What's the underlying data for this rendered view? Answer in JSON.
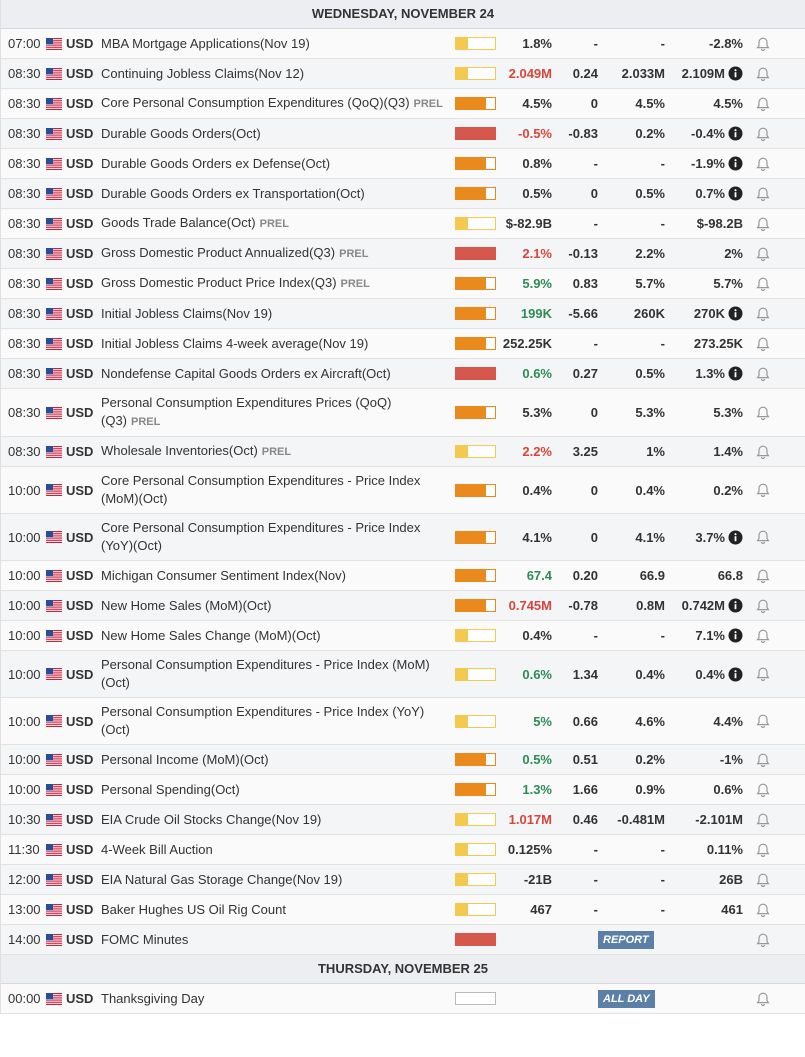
{
  "days": [
    {
      "header": "WEDNESDAY, NOVEMBER 24",
      "events": [
        {
          "time": "07:00",
          "currency": "USD",
          "event": "MBA Mortgage Applications(Nov 19)",
          "impact": "low",
          "actual": "1.8%",
          "deviation": "-",
          "consensus": "-",
          "previous": "-2.8%"
        },
        {
          "time": "08:30",
          "currency": "USD",
          "event": "Continuing Jobless Claims(Nov 12)",
          "impact": "low",
          "actual": "2.049M",
          "actual_tone": "negative",
          "deviation": "0.24",
          "consensus": "2.033M",
          "previous": "2.109M",
          "info": true
        },
        {
          "time": "08:30",
          "currency": "USD",
          "event": "Core Personal Consumption Expenditures (QoQ)(Q3)",
          "tag": "PREL",
          "impact": "medium",
          "actual": "4.5%",
          "deviation": "0",
          "consensus": "4.5%",
          "previous": "4.5%"
        },
        {
          "time": "08:30",
          "currency": "USD",
          "event": "Durable Goods Orders(Oct)",
          "impact": "high",
          "actual": "-0.5%",
          "actual_tone": "negative",
          "deviation": "-0.83",
          "consensus": "0.2%",
          "previous": "-0.4%",
          "info": true
        },
        {
          "time": "08:30",
          "currency": "USD",
          "event": "Durable Goods Orders ex Defense(Oct)",
          "impact": "medium",
          "actual": "0.8%",
          "deviation": "-",
          "consensus": "-",
          "previous": "-1.9%",
          "info": true
        },
        {
          "time": "08:30",
          "currency": "USD",
          "event": "Durable Goods Orders ex Transportation(Oct)",
          "impact": "medium",
          "actual": "0.5%",
          "deviation": "0",
          "consensus": "0.5%",
          "previous": "0.7%",
          "info": true
        },
        {
          "time": "08:30",
          "currency": "USD",
          "event": "Goods Trade Balance(Oct)",
          "tag": "PREL",
          "impact": "low",
          "actual": "$-82.9B",
          "deviation": "-",
          "consensus": "-",
          "previous": "$-98.2B"
        },
        {
          "time": "08:30",
          "currency": "USD",
          "event": "Gross Domestic Product Annualized(Q3)",
          "tag": "PREL",
          "impact": "high",
          "actual": "2.1%",
          "actual_tone": "negative",
          "deviation": "-0.13",
          "consensus": "2.2%",
          "previous": "2%"
        },
        {
          "time": "08:30",
          "currency": "USD",
          "event": "Gross Domestic Product Price Index(Q3)",
          "tag": "PREL",
          "impact": "medium",
          "actual": "5.9%",
          "actual_tone": "positive",
          "deviation": "0.83",
          "consensus": "5.7%",
          "previous": "5.7%"
        },
        {
          "time": "08:30",
          "currency": "USD",
          "event": "Initial Jobless Claims(Nov 19)",
          "impact": "medium",
          "actual": "199K",
          "actual_tone": "positive",
          "deviation": "-5.66",
          "consensus": "260K",
          "previous": "270K",
          "info": true
        },
        {
          "time": "08:30",
          "currency": "USD",
          "event": "Initial Jobless Claims 4-week average(Nov 19)",
          "impact": "medium",
          "actual": "252.25K",
          "deviation": "-",
          "consensus": "-",
          "previous": "273.25K"
        },
        {
          "time": "08:30",
          "currency": "USD",
          "event": "Nondefense Capital Goods Orders ex Aircraft(Oct)",
          "impact": "high",
          "actual": "0.6%",
          "actual_tone": "positive",
          "deviation": "0.27",
          "consensus": "0.5%",
          "previous": "1.3%",
          "info": true
        },
        {
          "time": "08:30",
          "currency": "USD",
          "event": "Personal Consumption Expenditures Prices (QoQ)(Q3)",
          "tag": "PREL",
          "impact": "medium",
          "actual": "5.3%",
          "deviation": "0",
          "consensus": "5.3%",
          "previous": "5.3%"
        },
        {
          "time": "08:30",
          "currency": "USD",
          "event": "Wholesale Inventories(Oct)",
          "tag": "PREL",
          "impact": "low",
          "actual": "2.2%",
          "actual_tone": "negative",
          "deviation": "3.25",
          "consensus": "1%",
          "previous": "1.4%"
        },
        {
          "time": "10:00",
          "currency": "USD",
          "event": "Core Personal Consumption Expenditures - Price Index (MoM)(Oct)",
          "impact": "medium",
          "actual": "0.4%",
          "deviation": "0",
          "consensus": "0.4%",
          "previous": "0.2%"
        },
        {
          "time": "10:00",
          "currency": "USD",
          "event": "Core Personal Consumption Expenditures - Price Index (YoY)(Oct)",
          "impact": "medium",
          "actual": "4.1%",
          "deviation": "0",
          "consensus": "4.1%",
          "previous": "3.7%",
          "info": true
        },
        {
          "time": "10:00",
          "currency": "USD",
          "event": "Michigan Consumer Sentiment Index(Nov)",
          "impact": "medium",
          "actual": "67.4",
          "actual_tone": "positive",
          "deviation": "0.20",
          "consensus": "66.9",
          "previous": "66.8"
        },
        {
          "time": "10:00",
          "currency": "USD",
          "event": "New Home Sales (MoM)(Oct)",
          "impact": "medium",
          "actual": "0.745M",
          "actual_tone": "negative",
          "deviation": "-0.78",
          "consensus": "0.8M",
          "previous": "0.742M",
          "info": true
        },
        {
          "time": "10:00",
          "currency": "USD",
          "event": "New Home Sales Change (MoM)(Oct)",
          "impact": "low",
          "actual": "0.4%",
          "deviation": "-",
          "consensus": "-",
          "previous": "7.1%",
          "info": true
        },
        {
          "time": "10:00",
          "currency": "USD",
          "event": "Personal Consumption Expenditures - Price Index (MoM)(Oct)",
          "impact": "low",
          "actual": "0.6%",
          "actual_tone": "positive",
          "deviation": "1.34",
          "consensus": "0.4%",
          "previous": "0.4%",
          "info": true
        },
        {
          "time": "10:00",
          "currency": "USD",
          "event": "Personal Consumption Expenditures - Price Index (YoY)(Oct)",
          "impact": "low",
          "actual": "5%",
          "actual_tone": "positive",
          "deviation": "0.66",
          "consensus": "4.6%",
          "previous": "4.4%"
        },
        {
          "time": "10:00",
          "currency": "USD",
          "event": "Personal Income (MoM)(Oct)",
          "impact": "medium",
          "actual": "0.5%",
          "actual_tone": "positive",
          "deviation": "0.51",
          "consensus": "0.2%",
          "previous": "-1%"
        },
        {
          "time": "10:00",
          "currency": "USD",
          "event": "Personal Spending(Oct)",
          "impact": "medium",
          "actual": "1.3%",
          "actual_tone": "positive",
          "deviation": "1.66",
          "consensus": "0.9%",
          "previous": "0.6%"
        },
        {
          "time": "10:30",
          "currency": "USD",
          "event": "EIA Crude Oil Stocks Change(Nov 19)",
          "impact": "low",
          "actual": "1.017M",
          "actual_tone": "negative",
          "deviation": "0.46",
          "consensus": "-0.481M",
          "previous": "-2.101M"
        },
        {
          "time": "11:30",
          "currency": "USD",
          "event": "4-Week Bill Auction",
          "impact": "low",
          "actual": "0.125%",
          "deviation": "-",
          "consensus": "-",
          "previous": "0.11%"
        },
        {
          "time": "12:00",
          "currency": "USD",
          "event": "EIA Natural Gas Storage Change(Nov 19)",
          "impact": "low",
          "actual": "-21B",
          "deviation": "-",
          "consensus": "-",
          "previous": "26B"
        },
        {
          "time": "13:00",
          "currency": "USD",
          "event": "Baker Hughes US Oil Rig Count",
          "impact": "low",
          "actual": "467",
          "deviation": "-",
          "consensus": "-",
          "previous": "461"
        },
        {
          "time": "14:00",
          "currency": "USD",
          "event": "FOMC Minutes",
          "impact": "high",
          "button": "REPORT"
        }
      ]
    },
    {
      "header": "THURSDAY, NOVEMBER 25",
      "events": [
        {
          "time": "00:00",
          "currency": "USD",
          "event": "Thanksgiving Day",
          "impact": "none",
          "button": "ALL DAY"
        }
      ]
    }
  ]
}
